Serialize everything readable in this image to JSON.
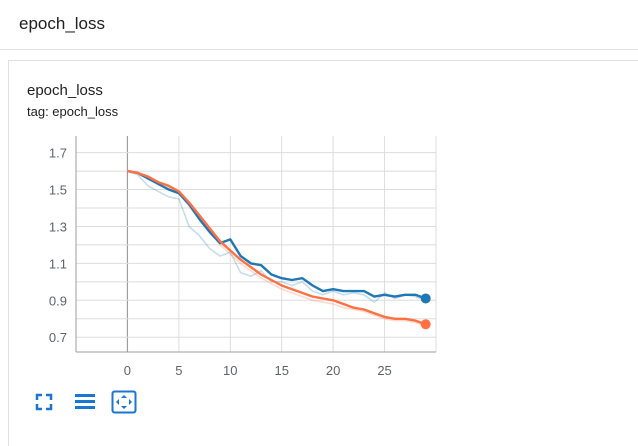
{
  "section": {
    "title": "epoch_loss"
  },
  "card": {
    "title": "epoch_loss",
    "tag": "tag: epoch_loss"
  },
  "toolbar": {
    "icons": [
      "fullscreen-icon",
      "toggle-log-scale-icon",
      "fit-domain-icon"
    ]
  },
  "colors": {
    "train": "#1f77b4",
    "validation": "#ff7043",
    "grid": "#dddddd",
    "axis": "#9e9e9e",
    "icon": "#1976d2"
  },
  "chart_data": {
    "type": "line",
    "title": "",
    "xlabel": "",
    "ylabel": "",
    "x_ticks": [
      0,
      5,
      10,
      15,
      20,
      25
    ],
    "y_ticks": [
      0.7,
      0.9,
      1.1,
      1.3,
      1.5,
      1.7
    ],
    "xlim": [
      -5,
      30
    ],
    "ylim": [
      0.62,
      1.79
    ],
    "grid": true,
    "series": [
      {
        "smoothed": [
          1.6,
          1.59,
          1.56,
          1.53,
          1.5,
          1.48,
          1.42,
          1.34,
          1.27,
          1.21,
          1.23,
          1.14,
          1.1,
          1.09,
          1.04,
          1.02,
          1.01,
          1.02,
          0.98,
          0.95,
          0.96,
          0.95,
          0.95,
          0.95,
          0.92,
          0.93,
          0.92,
          0.93,
          0.93,
          0.91
        ],
        "raw": [
          1.6,
          1.58,
          1.52,
          1.49,
          1.46,
          1.45,
          1.3,
          1.25,
          1.18,
          1.14,
          1.16,
          1.05,
          1.03,
          1.06,
          1.0,
          1.0,
          0.98,
          1.0,
          0.95,
          0.93,
          0.95,
          0.93,
          0.94,
          0.93,
          0.89,
          0.94,
          0.91,
          0.93,
          0.92,
          0.9
        ]
      },
      {
        "smoothed": [
          1.6,
          1.59,
          1.57,
          1.54,
          1.52,
          1.49,
          1.43,
          1.36,
          1.29,
          1.22,
          1.17,
          1.12,
          1.08,
          1.04,
          1.01,
          0.98,
          0.96,
          0.94,
          0.92,
          0.91,
          0.9,
          0.88,
          0.86,
          0.85,
          0.83,
          0.81,
          0.8,
          0.8,
          0.79,
          0.77
        ],
        "raw": [
          1.6,
          1.59,
          1.56,
          1.53,
          1.51,
          1.48,
          1.41,
          1.34,
          1.27,
          1.2,
          1.15,
          1.1,
          1.06,
          1.02,
          0.99,
          0.96,
          0.94,
          0.92,
          0.9,
          0.89,
          0.88,
          0.86,
          0.85,
          0.84,
          0.82,
          0.8,
          0.79,
          0.79,
          0.78,
          0.76
        ]
      }
    ]
  }
}
